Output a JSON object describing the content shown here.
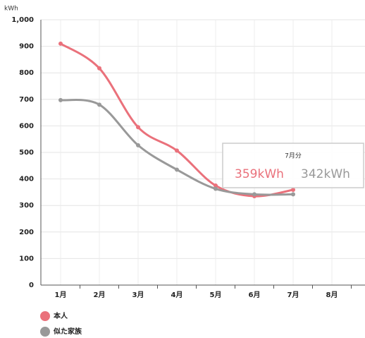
{
  "chart_data": {
    "type": "line",
    "y_unit": "kWh",
    "categories": [
      "1月",
      "2月",
      "3月",
      "4月",
      "5月",
      "6月",
      "7月",
      "8月"
    ],
    "series": [
      {
        "name": "本人",
        "color": "#ea717b",
        "values": [
          910,
          817,
          595,
          507,
          375,
          335,
          359,
          null
        ]
      },
      {
        "name": "似た家族",
        "color": "#999999",
        "values": [
          697,
          680,
          527,
          435,
          363,
          342,
          342,
          null
        ]
      }
    ],
    "ylim": [
      0,
      1000
    ],
    "yticks": [
      0,
      100,
      200,
      300,
      400,
      500,
      600,
      700,
      800,
      900,
      {
        "value": 1000,
        "label": "1,000"
      }
    ],
    "grid": true,
    "tooltip": {
      "title": "7月分",
      "labels": [
        "359kWh",
        "342kWh"
      ]
    }
  }
}
